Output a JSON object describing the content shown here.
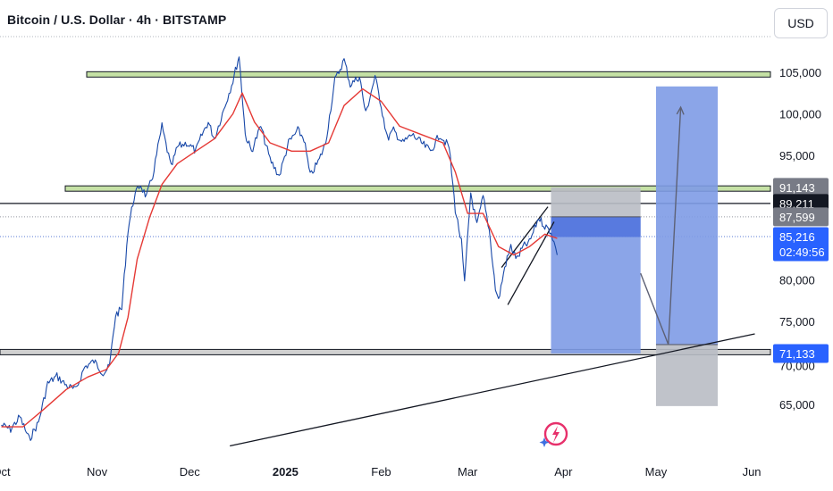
{
  "header": {
    "title": "Bitcoin / U.S. Dollar · 4h · BITSTAMP"
  },
  "currency_button": {
    "label": "USD"
  },
  "chart_data": {
    "type": "line",
    "title": "Bitcoin / U.S. Dollar · 4h · BITSTAMP",
    "x_tick_labels": [
      "Oct",
      "Nov",
      "Dec",
      "2025",
      "Feb",
      "Mar",
      "Apr",
      "May",
      "Jun"
    ],
    "y_tick_labels": [
      "105,000",
      "100,000",
      "95,000",
      "80,000",
      "75,000",
      "65,000"
    ],
    "ylim": [
      63000,
      109000
    ],
    "price_markers": [
      {
        "value": 91143,
        "label": "91,143",
        "style": "gray"
      },
      {
        "value": 89211,
        "label": "89,211",
        "style": "black"
      },
      {
        "value": 87599,
        "label": "87,599",
        "style": "gray"
      },
      {
        "value": 85216,
        "label": "85,216",
        "style": "blue",
        "countdown": "02:49:56"
      },
      {
        "value": 71133,
        "label": "71,133",
        "style": "blue"
      }
    ],
    "horizontal_zones": [
      {
        "value": 104750,
        "color": "#c5e1a5"
      },
      {
        "value": 91000,
        "color": "#c5e1a5"
      },
      {
        "value": 71300,
        "color": "#d0d0d0"
      }
    ],
    "horizontal_lines": [
      89211
    ],
    "series": [
      {
        "role": "price",
        "color": "#1848a8",
        "points": [
          [
            "Oct 1",
            62500
          ],
          [
            "Oct 4",
            62000
          ],
          [
            "Oct 7",
            63500
          ],
          [
            "Oct 10",
            60800
          ],
          [
            "Oct 13",
            62800
          ],
          [
            "Oct 16",
            67500
          ],
          [
            "Oct 19",
            68400
          ],
          [
            "Oct 22",
            67300
          ],
          [
            "Oct 25",
            66700
          ],
          [
            "Oct 28",
            69500
          ],
          [
            "Oct 31",
            70200
          ],
          [
            "Nov 3",
            68800
          ],
          [
            "Nov 5",
            69500
          ],
          [
            "Nov 7",
            75800
          ],
          [
            "Nov 9",
            76500
          ],
          [
            "Nov 11",
            86000
          ],
          [
            "Nov 13",
            90000
          ],
          [
            "Nov 15",
            91500
          ],
          [
            "Nov 17",
            90000
          ],
          [
            "Nov 19",
            92500
          ],
          [
            "Nov 22",
            98500
          ],
          [
            "Nov 25",
            93500
          ],
          [
            "Nov 27",
            96000
          ],
          [
            "Nov 30",
            96500
          ],
          [
            "Dec 3",
            95500
          ],
          [
            "Dec 5",
            97500
          ],
          [
            "Dec 7",
            99000
          ],
          [
            "Dec 9",
            97000
          ],
          [
            "Dec 12",
            100500
          ],
          [
            "Dec 15",
            104000
          ],
          [
            "Dec 17",
            107000
          ],
          [
            "Dec 19",
            97500
          ],
          [
            "Dec 21",
            95500
          ],
          [
            "Dec 24",
            98500
          ],
          [
            "Dec 27",
            94500
          ],
          [
            "Dec 30",
            92500
          ],
          [
            "Jan 2",
            96500
          ],
          [
            "Jan 5",
            98000
          ],
          [
            "Jan 7",
            97000
          ],
          [
            "Jan 9",
            92500
          ],
          [
            "Jan 12",
            94500
          ],
          [
            "Jan 14",
            96500
          ],
          [
            "Jan 17",
            104000
          ],
          [
            "Jan 20",
            106500
          ],
          [
            "Jan 22",
            103500
          ],
          [
            "Jan 25",
            104500
          ],
          [
            "Jan 27",
            100000
          ],
          [
            "Jan 30",
            104500
          ],
          [
            "Feb 1",
            101000
          ],
          [
            "Feb 3",
            97000
          ],
          [
            "Feb 5",
            98000
          ],
          [
            "Feb 8",
            96500
          ],
          [
            "Feb 11",
            97500
          ],
          [
            "Feb 14",
            96500
          ],
          [
            "Feb 17",
            95500
          ],
          [
            "Feb 20",
            97500
          ],
          [
            "Feb 23",
            96000
          ],
          [
            "Feb 25",
            88500
          ],
          [
            "Feb 27",
            84500
          ],
          [
            "Feb 28",
            79500
          ],
          [
            "Mar 2",
            90500
          ],
          [
            "Mar 4",
            86500
          ],
          [
            "Mar 6",
            90000
          ],
          [
            "Mar 8",
            86000
          ],
          [
            "Mar 10",
            79000
          ],
          [
            "Mar 11",
            77500
          ],
          [
            "Mar 13",
            81500
          ],
          [
            "Mar 15",
            84000
          ],
          [
            "Mar 17",
            82500
          ],
          [
            "Mar 19",
            84000
          ],
          [
            "Mar 21",
            84500
          ],
          [
            "Mar 24",
            87500
          ],
          [
            "Mar 26",
            86500
          ],
          [
            "Mar 28",
            85800
          ],
          [
            "Mar 29",
            84500
          ],
          [
            "Mar 30",
            83000
          ]
        ]
      },
      {
        "role": "moving_average",
        "color": "#e53935",
        "points": [
          [
            "Oct 1",
            62300
          ],
          [
            "Oct 8",
            62300
          ],
          [
            "Oct 15",
            64500
          ],
          [
            "Oct 22",
            66800
          ],
          [
            "Oct 29",
            68300
          ],
          [
            "Nov 4",
            69200
          ],
          [
            "Nov 8",
            71200
          ],
          [
            "Nov 11",
            75500
          ],
          [
            "Nov 14",
            82500
          ],
          [
            "Nov 18",
            87500
          ],
          [
            "Nov 22",
            91500
          ],
          [
            "Nov 27",
            94000
          ],
          [
            "Dec 3",
            95500
          ],
          [
            "Dec 9",
            97000
          ],
          [
            "Dec 15",
            100000
          ],
          [
            "Dec 18",
            102500
          ],
          [
            "Dec 22",
            99000
          ],
          [
            "Dec 27",
            96500
          ],
          [
            "Jan 3",
            95500
          ],
          [
            "Jan 9",
            95500
          ],
          [
            "Jan 15",
            96500
          ],
          [
            "Jan 20",
            101000
          ],
          [
            "Jan 26",
            103000
          ],
          [
            "Feb 1",
            101500
          ],
          [
            "Feb 7",
            98500
          ],
          [
            "Feb 14",
            97500
          ],
          [
            "Feb 21",
            96500
          ],
          [
            "Feb 25",
            93000
          ],
          [
            "Mar 1",
            88000
          ],
          [
            "Mar 6",
            88000
          ],
          [
            "Mar 11",
            84000
          ],
          [
            "Mar 16",
            83000
          ],
          [
            "Mar 21",
            84000
          ],
          [
            "Mar 26",
            85500
          ],
          [
            "Mar 30",
            85000
          ]
        ]
      }
    ],
    "trend_lines": [
      {
        "from": [
          "Dec 14",
          60000
        ],
        "to": [
          "Jun 2",
          73500
        ]
      },
      {
        "from": [
          "Mar 14",
          77000
        ],
        "to": [
          "Mar 29",
          87000
        ]
      },
      {
        "from": [
          "Mar 12",
          81500
        ],
        "to": [
          "Mar 27",
          88800
        ]
      }
    ],
    "position_boxes": [
      {
        "kind": "short",
        "x_from": "Mar 28",
        "x_to": "Apr 26",
        "entry": 87599,
        "stop": 91143,
        "target": 71133
      },
      {
        "kind": "long",
        "x_from": "May 1",
        "x_to": "May 21",
        "entry": 72200,
        "stop": 64800,
        "target": 103300
      }
    ],
    "projection_path": [
      [
        "Apr 26",
        80800
      ],
      [
        "May 5",
        72200
      ],
      [
        "May 9",
        100800
      ]
    ]
  }
}
